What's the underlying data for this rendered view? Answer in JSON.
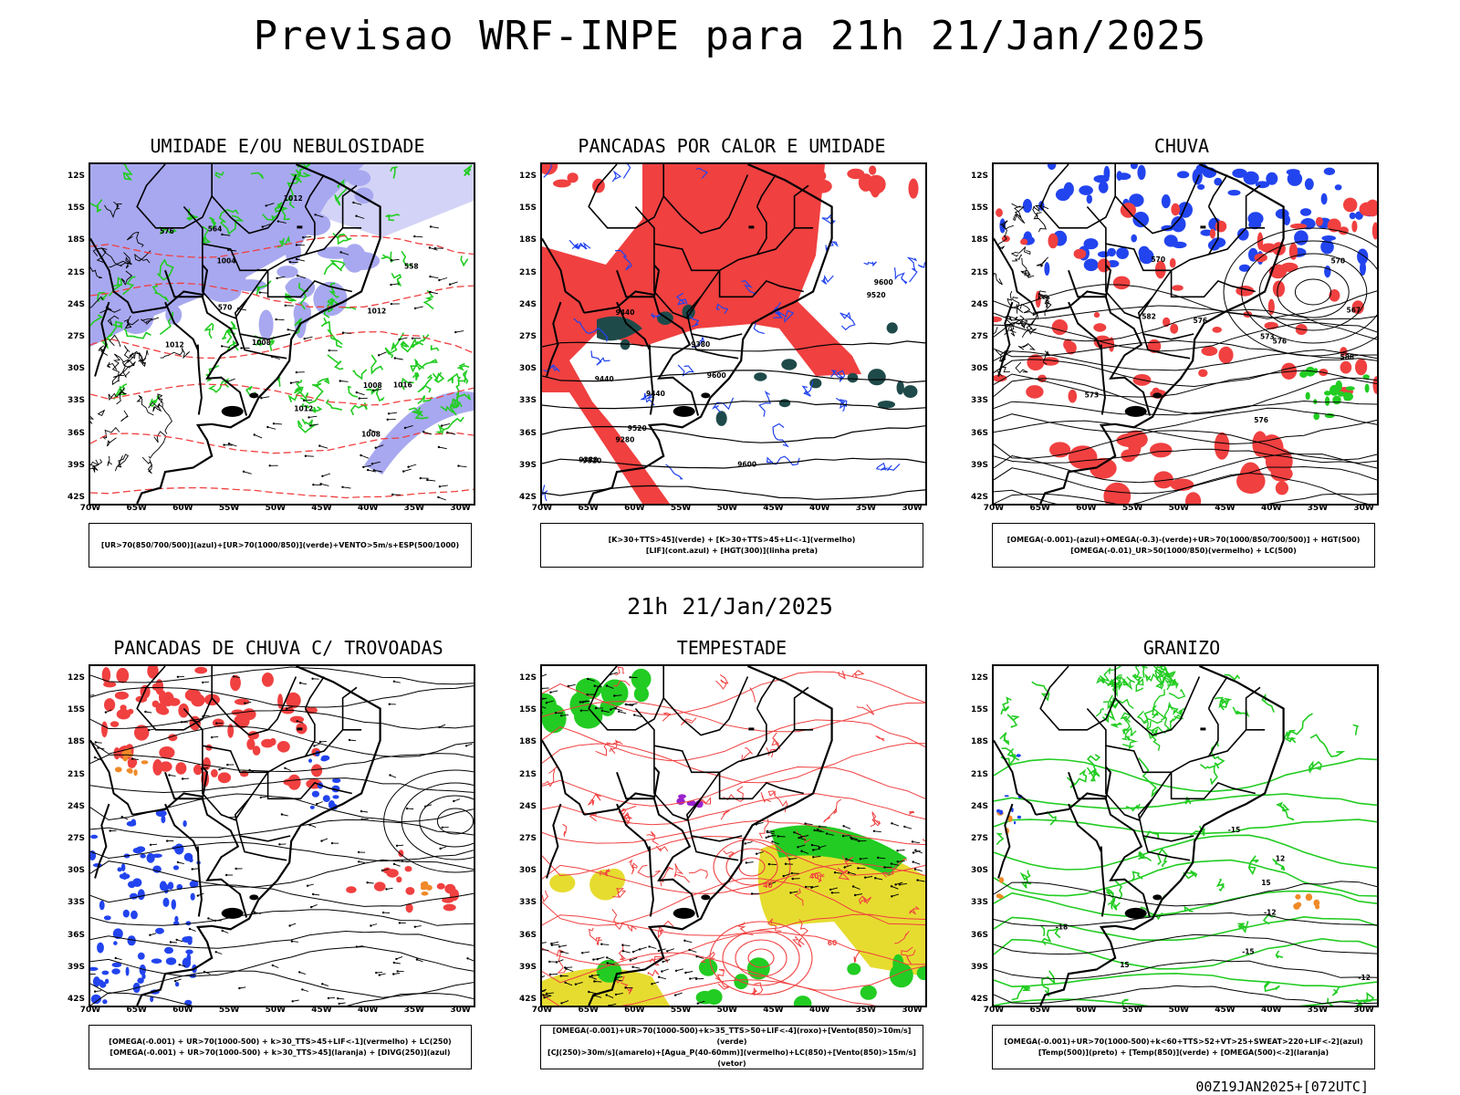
{
  "title": "Previsao WRF-INPE  para 21h 21/Jan/2025",
  "mid_title": "21h 21/Jan/2025",
  "footer": "00Z19JAN2025+[072UTC]",
  "axis": {
    "lat": [
      "12S",
      "15S",
      "18S",
      "21S",
      "24S",
      "27S",
      "30S",
      "33S",
      "36S",
      "39S",
      "42S"
    ],
    "lon": [
      "70W",
      "65W",
      "60W",
      "55W",
      "50W",
      "45W",
      "40W",
      "35W",
      "30W"
    ]
  },
  "colors": {
    "red": "#f04040",
    "green": "#22cc22",
    "blue": "#2244ee",
    "lavender": "#a8a8f0",
    "teal": "#1f4a4a",
    "yellow": "#e6dc30",
    "purple": "#9a22cc",
    "orange": "#f08a28"
  },
  "panels": [
    {
      "title": "UMIDADE E/OU NEBULOSIDADE",
      "legend": [
        "[UR>70(850/700/500)](azul)+[UR>70(1000/850)](verde)+VENTO>5m/s+ESP(500/1000)"
      ],
      "labels": [
        "1012",
        "1012",
        "1012",
        "1008",
        "1008",
        "1016",
        "576",
        "570",
        "564",
        "558",
        "1004",
        "1008",
        "1012"
      ]
    },
    {
      "title": "PANCADAS POR CALOR E UMIDADE",
      "legend": [
        "[K>30+TTS>45](verde) + [K>30+TTS>45+LI<-1](vermelho)",
        "[LIF](cont.azul) + [HGT(300)](linha preta)"
      ],
      "labels": [
        "9600",
        "9520",
        "9440",
        "9380",
        "9600",
        "9520",
        "9440",
        "9380",
        "9280",
        "9600",
        "9520",
        "9440"
      ]
    },
    {
      "title": "CHUVA",
      "legend": [
        "[OMEGA(-0.001)-(azul)+OMEGA(-0.3)-(verde)+UR>70(1000/850/700/500)] + HGT(500)",
        "[OMEGA(-0.01)_UR>50(1000/850)(vermelho) + LC(500)"
      ],
      "labels": [
        "588",
        "582",
        "576",
        "573",
        "570",
        "567",
        "576",
        "573",
        "570",
        "576"
      ]
    },
    {
      "title": "PANCADAS DE CHUVA C/ TROVOADAS",
      "legend": [
        "[OMEGA(-0.001) + UR>70(1000-500) + k>30_TTS>45+LIF<-1](vermelho) + LC(250)",
        "[OMEGA(-0.001) + UR>70(1000-500) + k>30_TTS>45](laranja) + [DIVG(250)](azul)"
      ],
      "labels": []
    },
    {
      "title": "TEMPESTADE",
      "legend": [
        "[OMEGA(-0.001)+UR>70(1000-500)+k>35_TTS>50+LIF<-4](roxo)+[Vento(850)>10m/s](verde)",
        "[CJ(250)>30m/s](amarelo)+[Agua_P(40-60mm)](vermelho)+LC(850)+[Vento(850)>15m/s](vetor)"
      ],
      "labels": [
        "40",
        "40",
        "60"
      ]
    },
    {
      "title": "GRANIZO",
      "legend": [
        "[OMEGA(-0.001)+UR>70(1000-500)+k<60+TTS>52+VT>25+SWEAT>220+LIF<-2](azul)",
        "[Temp(500)](preto) + [Temp(850)](verde) + [OMEGA(500)<-2](laranja)"
      ],
      "labels": [
        "-12",
        "-12",
        "-15",
        "-15",
        "12",
        "15",
        "-18",
        "15"
      ]
    }
  ]
}
